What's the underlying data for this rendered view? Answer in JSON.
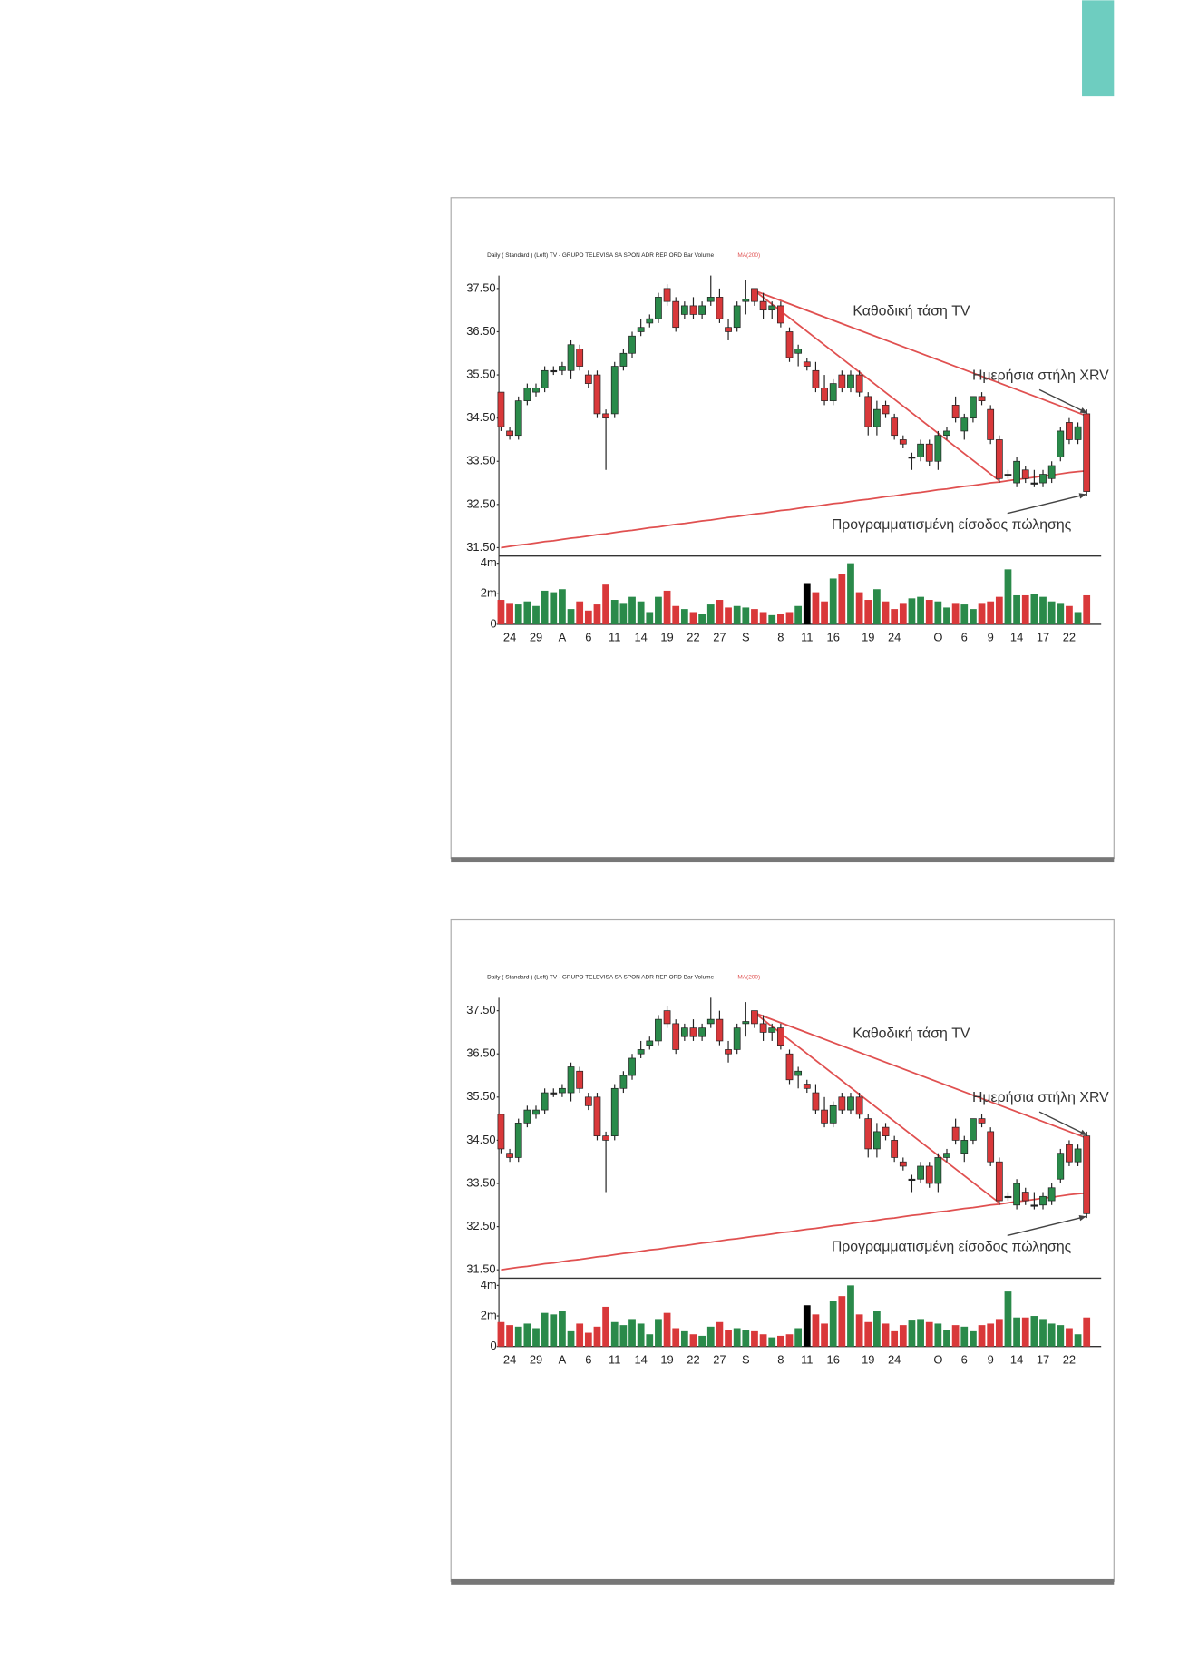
{
  "chart_data": [
    {
      "type": "candlestick",
      "title": "Daily ( Standard )  (Left)   TV - GRUPO TELEVISA SA SPON ADR REP ORD  Bar  Volume",
      "ma_name": "MA(200)",
      "annotations": [
        "Καθοδική τάση TV",
        "Ημερήσια στήλη XRV",
        "Προγραμματισμένη είσοδος πώλησης"
      ],
      "up_color": "#2a8a4a",
      "down_color": "#d9383a",
      "ma_color": "#e05050",
      "volume_highlight_index": 35,
      "volume_highlight_color": "#000000",
      "ylim": [
        31.33,
        37.8
      ],
      "yticks": [
        {
          "value": 37.5,
          "label": "37.50"
        },
        {
          "value": 36.5,
          "label": "36.50"
        },
        {
          "value": 35.5,
          "label": "35.50"
        },
        {
          "value": 34.5,
          "label": "34.50"
        },
        {
          "value": 33.5,
          "label": "33.50"
        },
        {
          "value": 32.5,
          "label": "32.50"
        },
        {
          "value": 31.5,
          "label": "31.50"
        }
      ],
      "volume_ylim": [
        0,
        4.4
      ],
      "volume_yticks": [
        {
          "value": 4,
          "label": "4m"
        },
        {
          "value": 2,
          "label": "2m"
        },
        0
      ],
      "categories": [
        null,
        "24",
        null,
        null,
        "29",
        null,
        null,
        "A",
        null,
        null,
        "6",
        null,
        null,
        "11",
        null,
        null,
        "14",
        null,
        null,
        "19",
        null,
        null,
        "22",
        null,
        null,
        "27",
        null,
        null,
        "S",
        null,
        null,
        null,
        "8",
        null,
        null,
        "11",
        null,
        null,
        "16",
        null,
        null,
        null,
        "19",
        null,
        null,
        "24",
        null,
        null,
        null,
        null,
        "O",
        null,
        null,
        "6",
        null,
        null,
        "9",
        null,
        null,
        "14",
        null,
        null,
        "17",
        null,
        null,
        "22",
        null,
        null
      ],
      "open": [
        35.1,
        34.2,
        34.1,
        34.9,
        35.1,
        35.2,
        35.6,
        35.6,
        35.6,
        36.1,
        35.5,
        35.5,
        34.6,
        34.6,
        35.7,
        36.0,
        36.5,
        36.7,
        36.8,
        37.5,
        37.2,
        36.9,
        37.1,
        36.9,
        37.2,
        37.3,
        36.6,
        36.6,
        37.2,
        37.5,
        37.2,
        37.0,
        37.1,
        36.5,
        36.0,
        35.8,
        35.6,
        35.2,
        34.9,
        35.5,
        35.2,
        35.5,
        35.0,
        34.3,
        34.8,
        34.5,
        34.0,
        33.6,
        33.6,
        33.9,
        33.5,
        34.1,
        34.8,
        34.2,
        34.5,
        35.0,
        34.7,
        34.0,
        33.2,
        33.0,
        33.3,
        33.0,
        33.0,
        33.1,
        33.6,
        34.4,
        34.0,
        34.6
      ],
      "high": [
        35.1,
        34.3,
        35.0,
        35.3,
        35.3,
        35.7,
        35.7,
        35.8,
        36.3,
        36.2,
        35.6,
        35.6,
        34.7,
        35.8,
        36.1,
        36.5,
        36.8,
        36.9,
        37.4,
        37.6,
        37.3,
        37.2,
        37.3,
        37.2,
        37.8,
        37.5,
        36.8,
        37.2,
        37.7,
        37.5,
        37.4,
        37.2,
        37.2,
        36.6,
        36.2,
        35.9,
        35.8,
        35.5,
        35.4,
        35.6,
        35.6,
        35.6,
        35.1,
        34.9,
        34.9,
        34.6,
        34.1,
        33.7,
        34.0,
        34.0,
        34.2,
        34.3,
        35.0,
        34.6,
        35.0,
        35.1,
        34.8,
        34.1,
        33.3,
        33.6,
        33.4,
        33.3,
        33.3,
        33.5,
        34.3,
        34.5,
        34.4,
        34.7
      ],
      "low": [
        34.2,
        34.0,
        34.0,
        34.8,
        35.0,
        35.1,
        35.5,
        35.5,
        35.4,
        35.6,
        35.2,
        34.5,
        33.3,
        34.5,
        35.6,
        35.9,
        36.4,
        36.6,
        36.7,
        37.1,
        36.5,
        36.8,
        36.8,
        36.8,
        37.1,
        36.7,
        36.3,
        36.5,
        36.9,
        37.1,
        36.8,
        36.8,
        36.6,
        35.8,
        35.7,
        35.6,
        35.1,
        34.8,
        34.8,
        35.1,
        35.1,
        35.0,
        34.1,
        34.1,
        34.5,
        34.0,
        33.8,
        33.3,
        33.5,
        33.4,
        33.3,
        34.0,
        34.4,
        34.0,
        34.4,
        34.8,
        33.9,
        33.0,
        33.1,
        32.9,
        33.0,
        32.9,
        32.9,
        33.0,
        33.5,
        33.9,
        33.9,
        32.7
      ],
      "close": [
        34.3,
        34.1,
        34.9,
        35.2,
        35.2,
        35.6,
        35.6,
        35.7,
        36.2,
        35.7,
        35.3,
        34.6,
        34.5,
        35.7,
        36.0,
        36.4,
        36.6,
        36.8,
        37.3,
        37.2,
        36.6,
        37.1,
        36.9,
        37.1,
        37.3,
        36.8,
        36.5,
        37.1,
        37.25,
        37.2,
        37.0,
        37.1,
        36.7,
        35.9,
        36.1,
        35.7,
        35.2,
        34.9,
        35.3,
        35.2,
        35.5,
        35.1,
        34.3,
        34.7,
        34.6,
        34.1,
        33.9,
        33.6,
        33.9,
        33.5,
        34.1,
        34.2,
        34.5,
        34.5,
        35.0,
        34.9,
        34.0,
        33.1,
        33.2,
        33.5,
        33.1,
        33.0,
        33.2,
        33.4,
        34.2,
        34.0,
        34.3,
        32.8
      ],
      "ma": [
        31.5,
        31.53,
        31.56,
        31.58,
        31.61,
        31.64,
        31.66,
        31.69,
        31.72,
        31.74,
        31.77,
        31.8,
        31.82,
        31.85,
        31.88,
        31.9,
        31.93,
        31.96,
        31.98,
        32.01,
        32.04,
        32.06,
        32.09,
        32.12,
        32.14,
        32.17,
        32.2,
        32.22,
        32.25,
        32.28,
        32.3,
        32.33,
        32.36,
        32.38,
        32.41,
        32.44,
        32.46,
        32.49,
        32.52,
        32.54,
        32.57,
        32.6,
        32.62,
        32.65,
        32.68,
        32.7,
        32.73,
        32.76,
        32.78,
        32.81,
        32.84,
        32.86,
        32.89,
        32.92,
        32.94,
        32.97,
        33.0,
        33.02,
        33.05,
        33.08,
        33.1,
        33.13,
        33.16,
        33.18,
        33.21,
        33.24,
        33.26,
        33.28
      ],
      "volume": [
        1.6,
        1.4,
        1.3,
        1.5,
        1.2,
        2.2,
        2.1,
        2.3,
        1.0,
        1.5,
        0.9,
        1.3,
        2.6,
        1.6,
        1.4,
        1.8,
        1.5,
        0.8,
        1.8,
        2.2,
        1.2,
        1.0,
        0.8,
        0.7,
        1.3,
        1.6,
        1.1,
        1.2,
        1.1,
        1.0,
        0.8,
        0.6,
        0.7,
        0.8,
        1.2,
        2.7,
        2.1,
        1.5,
        3.0,
        3.3,
        4.0,
        2.1,
        1.6,
        2.3,
        1.5,
        1.0,
        1.4,
        1.7,
        1.8,
        1.6,
        1.5,
        1.1,
        1.4,
        1.3,
        1.0,
        1.4,
        1.5,
        1.8,
        3.6,
        1.9,
        1.9,
        2.0,
        1.8,
        1.5,
        1.4,
        1.2,
        0.8,
        1.9
      ],
      "trendlines": [
        {
          "x": [
            29,
            67
          ],
          "y": [
            37.45,
            34.55
          ]
        },
        {
          "x": [
            29,
            57
          ],
          "y": [
            37.45,
            33.05
          ]
        }
      ]
    },
    {
      "type": "candlestick",
      "title": "Daily ( Standard )  (Left)   TV - GRUPO TELEVISA SA SPON ADR REP ORD  Bar  Volume",
      "ma_name": "MA(200)",
      "annotations": [
        "Καθοδική τάση TV",
        "Ημερήσια στήλη XRV",
        "Προγραμματισμένη είσοδος πώλησης"
      ],
      "up_color": "#2a8a4a",
      "down_color": "#d9383a",
      "ma_color": "#e05050",
      "volume_highlight_index": 35,
      "volume_highlight_color": "#000000",
      "ylim": [
        31.33,
        37.8
      ],
      "yticks": [
        {
          "value": 37.5,
          "label": "37.50"
        },
        {
          "value": 36.5,
          "label": "36.50"
        },
        {
          "value": 35.5,
          "label": "35.50"
        },
        {
          "value": 34.5,
          "label": "34.50"
        },
        {
          "value": 33.5,
          "label": "33.50"
        },
        {
          "value": 32.5,
          "label": "32.50"
        },
        {
          "value": 31.5,
          "label": "31.50"
        }
      ],
      "volume_ylim": [
        0,
        4.4
      ],
      "volume_yticks": [
        {
          "value": 4,
          "label": "4m"
        },
        {
          "value": 2,
          "label": "2m"
        },
        0
      ],
      "categories": [
        null,
        "24",
        null,
        null,
        "29",
        null,
        null,
        "A",
        null,
        null,
        "6",
        null,
        null,
        "11",
        null,
        null,
        "14",
        null,
        null,
        "19",
        null,
        null,
        "22",
        null,
        null,
        "27",
        null,
        null,
        "S",
        null,
        null,
        null,
        "8",
        null,
        null,
        "11",
        null,
        null,
        "16",
        null,
        null,
        null,
        "19",
        null,
        null,
        "24",
        null,
        null,
        null,
        null,
        "O",
        null,
        null,
        "6",
        null,
        null,
        "9",
        null,
        null,
        "14",
        null,
        null,
        "17",
        null,
        null,
        "22",
        null,
        null
      ],
      "open": [
        35.1,
        34.2,
        34.1,
        34.9,
        35.1,
        35.2,
        35.6,
        35.6,
        35.6,
        36.1,
        35.5,
        35.5,
        34.6,
        34.6,
        35.7,
        36.0,
        36.5,
        36.7,
        36.8,
        37.5,
        37.2,
        36.9,
        37.1,
        36.9,
        37.2,
        37.3,
        36.6,
        36.6,
        37.2,
        37.5,
        37.2,
        37.0,
        37.1,
        36.5,
        36.0,
        35.8,
        35.6,
        35.2,
        34.9,
        35.5,
        35.2,
        35.5,
        35.0,
        34.3,
        34.8,
        34.5,
        34.0,
        33.6,
        33.6,
        33.9,
        33.5,
        34.1,
        34.8,
        34.2,
        34.5,
        35.0,
        34.7,
        34.0,
        33.2,
        33.0,
        33.3,
        33.0,
        33.0,
        33.1,
        33.6,
        34.4,
        34.0,
        34.6
      ],
      "high": [
        35.1,
        34.3,
        35.0,
        35.3,
        35.3,
        35.7,
        35.7,
        35.8,
        36.3,
        36.2,
        35.6,
        35.6,
        34.7,
        35.8,
        36.1,
        36.5,
        36.8,
        36.9,
        37.4,
        37.6,
        37.3,
        37.2,
        37.3,
        37.2,
        37.8,
        37.5,
        36.8,
        37.2,
        37.7,
        37.5,
        37.4,
        37.2,
        37.2,
        36.6,
        36.2,
        35.9,
        35.8,
        35.5,
        35.4,
        35.6,
        35.6,
        35.6,
        35.1,
        34.9,
        34.9,
        34.6,
        34.1,
        33.7,
        34.0,
        34.0,
        34.2,
        34.3,
        35.0,
        34.6,
        35.0,
        35.1,
        34.8,
        34.1,
        33.3,
        33.6,
        33.4,
        33.3,
        33.3,
        33.5,
        34.3,
        34.5,
        34.4,
        34.7
      ],
      "low": [
        34.2,
        34.0,
        34.0,
        34.8,
        35.0,
        35.1,
        35.5,
        35.5,
        35.4,
        35.6,
        35.2,
        34.5,
        33.3,
        34.5,
        35.6,
        35.9,
        36.4,
        36.6,
        36.7,
        37.1,
        36.5,
        36.8,
        36.8,
        36.8,
        37.1,
        36.7,
        36.3,
        36.5,
        36.9,
        37.1,
        36.8,
        36.8,
        36.6,
        35.8,
        35.7,
        35.6,
        35.1,
        34.8,
        34.8,
        35.1,
        35.1,
        35.0,
        34.1,
        34.1,
        34.5,
        34.0,
        33.8,
        33.3,
        33.5,
        33.4,
        33.3,
        34.0,
        34.4,
        34.0,
        34.4,
        34.8,
        33.9,
        33.0,
        33.1,
        32.9,
        33.0,
        32.9,
        32.9,
        33.0,
        33.5,
        33.9,
        33.9,
        32.7
      ],
      "close": [
        34.3,
        34.1,
        34.9,
        35.2,
        35.2,
        35.6,
        35.6,
        35.7,
        36.2,
        35.7,
        35.3,
        34.6,
        34.5,
        35.7,
        36.0,
        36.4,
        36.6,
        36.8,
        37.3,
        37.2,
        36.6,
        37.1,
        36.9,
        37.1,
        37.3,
        36.8,
        36.5,
        37.1,
        37.25,
        37.2,
        37.0,
        37.1,
        36.7,
        35.9,
        36.1,
        35.7,
        35.2,
        34.9,
        35.3,
        35.2,
        35.5,
        35.1,
        34.3,
        34.7,
        34.6,
        34.1,
        33.9,
        33.6,
        33.9,
        33.5,
        34.1,
        34.2,
        34.5,
        34.5,
        35.0,
        34.9,
        34.0,
        33.1,
        33.2,
        33.5,
        33.1,
        33.0,
        33.2,
        33.4,
        34.2,
        34.0,
        34.3,
        32.8
      ],
      "ma": [
        31.5,
        31.53,
        31.56,
        31.58,
        31.61,
        31.64,
        31.66,
        31.69,
        31.72,
        31.74,
        31.77,
        31.8,
        31.82,
        31.85,
        31.88,
        31.9,
        31.93,
        31.96,
        31.98,
        32.01,
        32.04,
        32.06,
        32.09,
        32.12,
        32.14,
        32.17,
        32.2,
        32.22,
        32.25,
        32.28,
        32.3,
        32.33,
        32.36,
        32.38,
        32.41,
        32.44,
        32.46,
        32.49,
        32.52,
        32.54,
        32.57,
        32.6,
        32.62,
        32.65,
        32.68,
        32.7,
        32.73,
        32.76,
        32.78,
        32.81,
        32.84,
        32.86,
        32.89,
        32.92,
        32.94,
        32.97,
        33.0,
        33.02,
        33.05,
        33.08,
        33.1,
        33.13,
        33.16,
        33.18,
        33.21,
        33.24,
        33.26,
        33.28
      ],
      "volume": [
        1.6,
        1.4,
        1.3,
        1.5,
        1.2,
        2.2,
        2.1,
        2.3,
        1.0,
        1.5,
        0.9,
        1.3,
        2.6,
        1.6,
        1.4,
        1.8,
        1.5,
        0.8,
        1.8,
        2.2,
        1.2,
        1.0,
        0.8,
        0.7,
        1.3,
        1.6,
        1.1,
        1.2,
        1.1,
        1.0,
        0.8,
        0.6,
        0.7,
        0.8,
        1.2,
        2.7,
        2.1,
        1.5,
        3.0,
        3.3,
        4.0,
        2.1,
        1.6,
        2.3,
        1.5,
        1.0,
        1.4,
        1.7,
        1.8,
        1.6,
        1.5,
        1.1,
        1.4,
        1.3,
        1.0,
        1.4,
        1.5,
        1.8,
        3.6,
        1.9,
        1.9,
        2.0,
        1.8,
        1.5,
        1.4,
        1.2,
        0.8,
        1.9
      ],
      "trendlines": [
        {
          "x": [
            29,
            67
          ],
          "y": [
            37.45,
            34.55
          ]
        },
        {
          "x": [
            29,
            57
          ],
          "y": [
            37.45,
            33.05
          ]
        }
      ]
    }
  ]
}
